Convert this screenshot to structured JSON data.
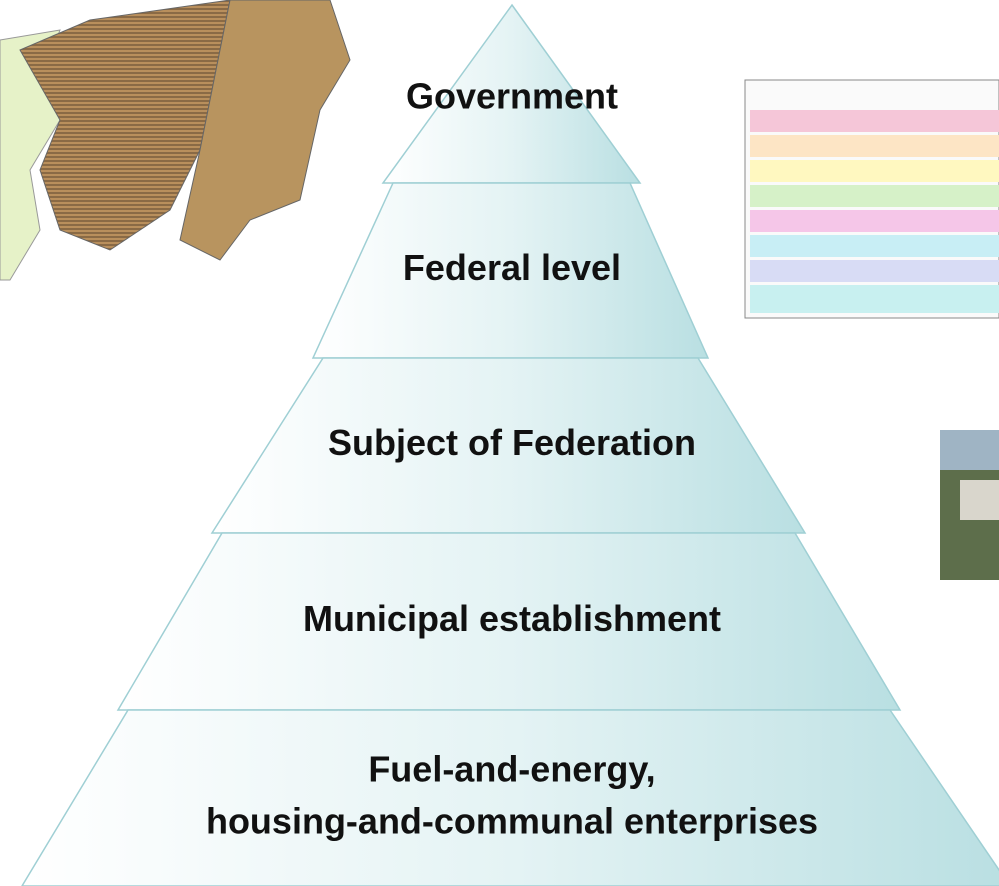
{
  "levels": [
    {
      "lines": [
        "Government"
      ]
    },
    {
      "lines": [
        "Federal level"
      ]
    },
    {
      "lines": [
        "Subject of Federation"
      ]
    },
    {
      "lines": [
        "Municipal establishment"
      ]
    },
    {
      "lines": [
        "Fuel-and-energy,",
        "housing-and-communal enterprises"
      ]
    }
  ]
}
